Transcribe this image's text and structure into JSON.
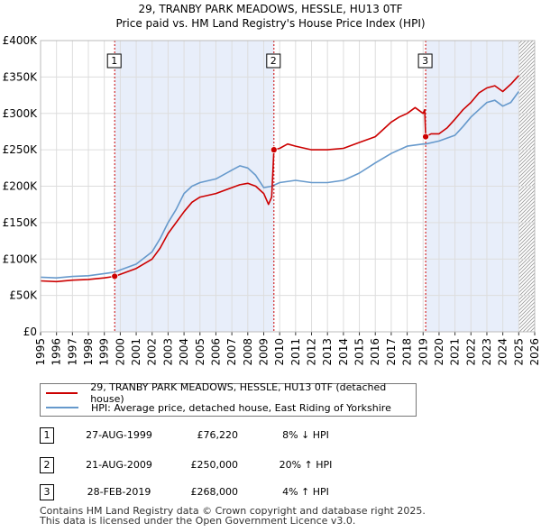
{
  "title_line1": "29, TRANBY PARK MEADOWS, HESSLE, HU13 0TF",
  "title_line2": "Price paid vs. HM Land Registry's House Price Index (HPI)",
  "colors": {
    "red": "#cc0000",
    "blue": "#6699cc",
    "shade": "#e8eefa",
    "hatch": "#aaaaaa",
    "marker_line": "#cc0000"
  },
  "chart_data": {
    "type": "line",
    "xlabel": "",
    "ylabel": "",
    "xlim": [
      1995,
      2026
    ],
    "ylim": [
      0,
      400000
    ],
    "y_ticks": [
      0,
      50000,
      100000,
      150000,
      200000,
      250000,
      300000,
      350000,
      400000
    ],
    "y_tick_labels": [
      "£0",
      "£50K",
      "£100K",
      "£150K",
      "£200K",
      "£250K",
      "£300K",
      "£350K",
      "£400K"
    ],
    "x_ticks": [
      1995,
      1996,
      1997,
      1998,
      1999,
      2000,
      2001,
      2002,
      2003,
      2004,
      2005,
      2006,
      2007,
      2008,
      2009,
      2010,
      2011,
      2012,
      2013,
      2014,
      2015,
      2016,
      2017,
      2018,
      2019,
      2020,
      2021,
      2022,
      2023,
      2024,
      2025,
      2026
    ],
    "x_tick_labels": [
      "1995",
      "1996",
      "1997",
      "1998",
      "1999",
      "2000",
      "2001",
      "2002",
      "2003",
      "2004",
      "2005",
      "2006",
      "2007",
      "2008",
      "2009",
      "2010",
      "2011",
      "2012",
      "2013",
      "2014",
      "2015",
      "2016",
      "2017",
      "2018",
      "2019",
      "2020",
      "2021",
      "2022",
      "2023",
      "2024",
      "2025",
      "2026"
    ],
    "future_from": 2025.0,
    "shaded_periods": [
      [
        1999.65,
        2009.64
      ],
      [
        2019.16,
        2025.0
      ]
    ],
    "series": [
      {
        "name": "29, TRANBY PARK MEADOWS, HESSLE, HU13 0TF (detached house)",
        "color": "#cc0000",
        "x": [
          1995.0,
          1996.0,
          1997.0,
          1998.0,
          1999.0,
          1999.65,
          2000.0,
          2001.0,
          2002.0,
          2002.5,
          2003.0,
          2003.5,
          2004.0,
          2004.5,
          2005.0,
          2006.0,
          2007.0,
          2007.5,
          2008.0,
          2008.5,
          2009.0,
          2009.3,
          2009.5,
          2009.64,
          2010.0,
          2010.5,
          2011.0,
          2012.0,
          2013.0,
          2014.0,
          2015.0,
          2016.0,
          2016.5,
          2017.0,
          2017.5,
          2018.0,
          2018.5,
          2019.0,
          2019.1,
          2019.16,
          2019.5,
          2020.0,
          2020.5,
          2021.0,
          2021.5,
          2022.0,
          2022.5,
          2023.0,
          2023.5,
          2024.0,
          2024.5,
          2025.0
        ],
        "values": [
          70000,
          69000,
          71000,
          72000,
          74000,
          76220,
          79000,
          87000,
          100000,
          115000,
          135000,
          150000,
          165000,
          178000,
          185000,
          190000,
          198000,
          202000,
          204000,
          200000,
          190000,
          175000,
          185000,
          250000,
          252000,
          258000,
          255000,
          250000,
          250000,
          252000,
          260000,
          268000,
          278000,
          288000,
          295000,
          300000,
          308000,
          300000,
          305000,
          268000,
          272000,
          272000,
          280000,
          292000,
          305000,
          315000,
          328000,
          335000,
          338000,
          330000,
          340000,
          352000
        ]
      },
      {
        "name": "HPI: Average price, detached house, East Riding of Yorkshire",
        "color": "#6699cc",
        "x": [
          1995.0,
          1996.0,
          1997.0,
          1998.0,
          1999.0,
          1999.65,
          2000.0,
          2001.0,
          2002.0,
          2002.5,
          2003.0,
          2003.5,
          2004.0,
          2004.5,
          2005.0,
          2006.0,
          2007.0,
          2007.5,
          2008.0,
          2008.5,
          2009.0,
          2009.5,
          2010.0,
          2011.0,
          2012.0,
          2013.0,
          2014.0,
          2015.0,
          2016.0,
          2017.0,
          2018.0,
          2019.0,
          2019.16,
          2020.0,
          2021.0,
          2021.5,
          2022.0,
          2022.5,
          2023.0,
          2023.5,
          2024.0,
          2024.5,
          2025.0
        ],
        "values": [
          75000,
          74000,
          76000,
          77000,
          80000,
          82000,
          85000,
          93000,
          110000,
          128000,
          150000,
          168000,
          190000,
          200000,
          205000,
          210000,
          222000,
          228000,
          225000,
          215000,
          198000,
          200000,
          205000,
          208000,
          205000,
          205000,
          208000,
          218000,
          232000,
          245000,
          255000,
          258000,
          258000,
          262000,
          270000,
          282000,
          295000,
          305000,
          315000,
          318000,
          310000,
          315000,
          330000
        ]
      }
    ],
    "sales": [
      {
        "label": "1",
        "x": 1999.65,
        "value": 76220
      },
      {
        "label": "2",
        "x": 2009.64,
        "value": 250000
      },
      {
        "label": "3",
        "x": 2019.16,
        "value": 268000
      }
    ]
  },
  "legend": {
    "property": "29, TRANBY PARK MEADOWS, HESSLE, HU13 0TF (detached house)",
    "hpi": "HPI: Average price, detached house, East Riding of Yorkshire"
  },
  "sales_table": [
    {
      "num": "1",
      "date": "27-AUG-1999",
      "price": "£76,220",
      "hpi": "8% ↓ HPI"
    },
    {
      "num": "2",
      "date": "21-AUG-2009",
      "price": "£250,000",
      "hpi": "20% ↑ HPI"
    },
    {
      "num": "3",
      "date": "28-FEB-2019",
      "price": "£268,000",
      "hpi": "4% ↑ HPI"
    }
  ],
  "footer": {
    "line1": "Contains HM Land Registry data © Crown copyright and database right 2025.",
    "line2": "This data is licensed under the Open Government Licence v3.0."
  }
}
